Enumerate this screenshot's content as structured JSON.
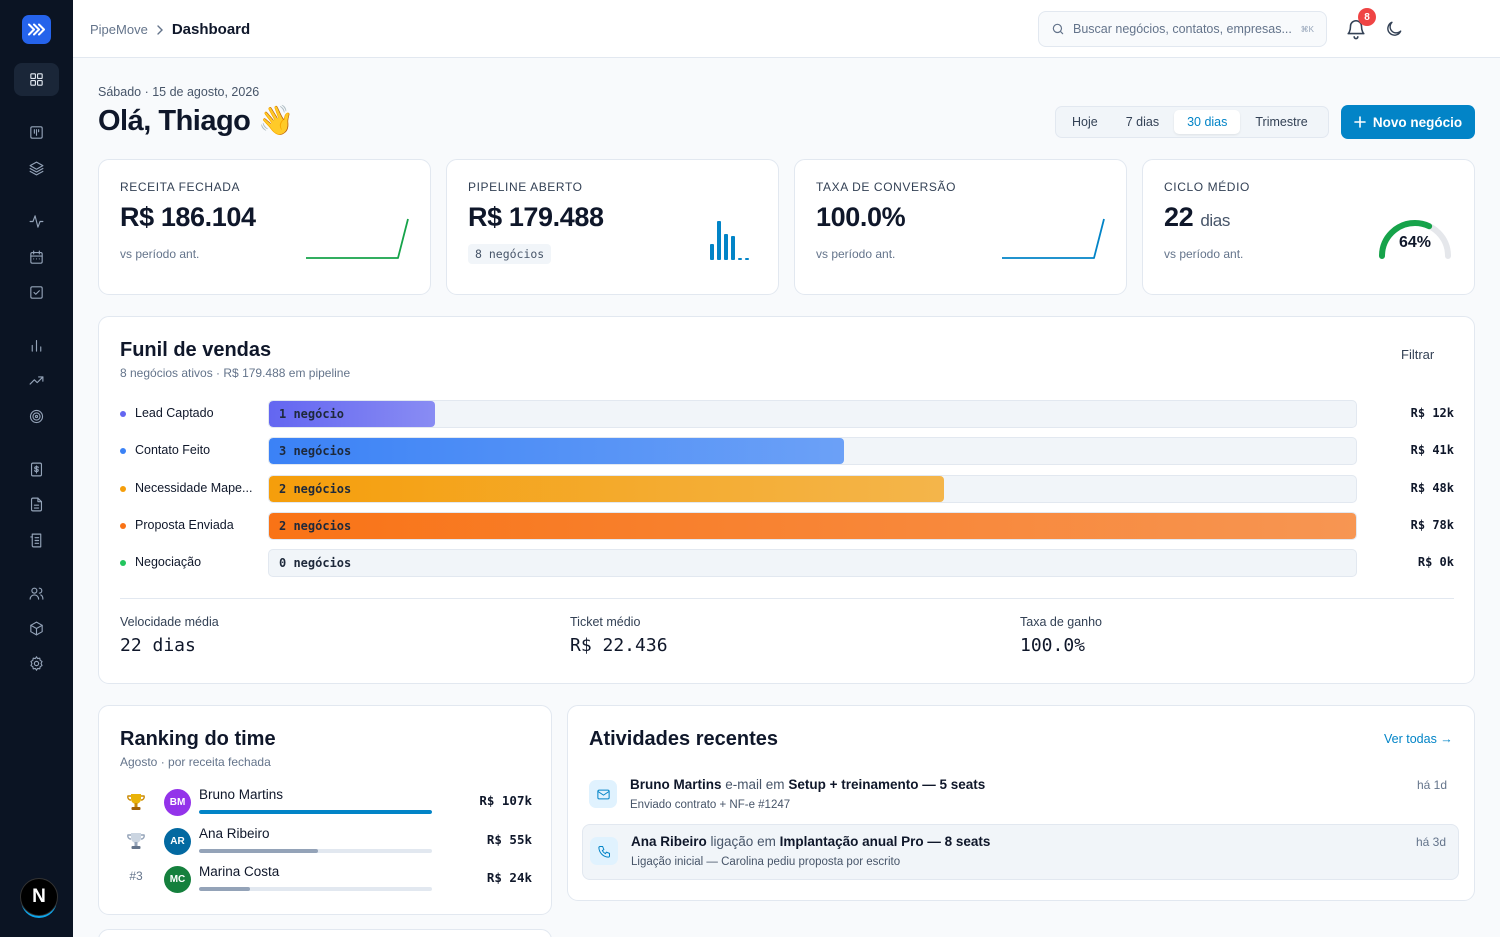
{
  "app": {
    "name": "PipeMove",
    "breadcrumb_current": "Dashboard",
    "accent": "#0284c7"
  },
  "search": {
    "placeholder": "Buscar negócios, contatos, empresas...",
    "shortcut": "⌘K"
  },
  "notifications": {
    "count": "8"
  },
  "sidebar": {
    "icons": [
      "dashboard-icon",
      "board-icon",
      "layers-icon",
      "activity-icon",
      "calendar-icon",
      "checkbox-icon",
      "bar-chart-icon",
      "trending-up-icon",
      "target-icon",
      "invoice-icon",
      "document-icon",
      "receipt-icon",
      "users-icon",
      "package-icon",
      "gear-icon"
    ],
    "user_initial": "N"
  },
  "header": {
    "date": "Sábado · 15 de agosto, 2026",
    "greeting": "Olá, Thiago 👋",
    "ranges": [
      "Hoje",
      "7 dias",
      "30 dias",
      "Trimestre"
    ],
    "selected_range": "30 dias",
    "new_button": "Novo negócio"
  },
  "kpis": [
    {
      "label": "RECEITA FECHADA",
      "value": "R$ 186.104",
      "sub": "vs período ant.",
      "spark_color": "#16a34a"
    },
    {
      "label": "PIPELINE ABERTO",
      "value": "R$ 179.488",
      "chip": "8 negócios",
      "bar_color": "#0284c7"
    },
    {
      "label": "TAXA DE CONVERSÃO",
      "value": "100.0%",
      "sub": "vs período ant.",
      "spark_color": "#0284c7"
    },
    {
      "label": "CICLO MÉDIO",
      "value": "22",
      "unit": "dias",
      "sub": "vs período ant.",
      "gauge_value": "64%",
      "gauge_fraction": 0.64,
      "gauge_color": "#16a34a"
    }
  ],
  "funnel": {
    "title": "Funil de vendas",
    "subtitle": "8 negócios ativos · R$ 179.488 em pipeline",
    "filter": "Filtrar",
    "stages": [
      {
        "name": "Lead Captado",
        "count": "1 negócio",
        "amount": "R$ 12k",
        "fraction": 0.153,
        "color": "#6366f1"
      },
      {
        "name": "Contato Feito",
        "count": "3 negócios",
        "amount": "R$ 41k",
        "fraction": 0.529,
        "color": "#3b82f6"
      },
      {
        "name": "Necessidade Mape...",
        "count": "2 negócios",
        "amount": "R$ 48k",
        "fraction": 0.621,
        "color": "#f59e0b"
      },
      {
        "name": "Proposta Enviada",
        "count": "2 negócios",
        "amount": "R$ 78k",
        "fraction": 1.0,
        "color": "#f97316"
      },
      {
        "name": "Negociação",
        "count": "0 negócios",
        "amount": "R$ 0k",
        "fraction": 0,
        "color": "#22c55e"
      }
    ],
    "stats": [
      {
        "label": "Velocidade média",
        "value": "22 dias"
      },
      {
        "label": "Ticket médio",
        "value": "R$ 22.436"
      },
      {
        "label": "Taxa de ganho",
        "value": "100.0%"
      }
    ]
  },
  "ranking": {
    "title": "Ranking do time",
    "subtitle": "Agosto · por receita fechada",
    "rows": [
      {
        "pos": "trophy-gold-icon",
        "initials": "BM",
        "name": "Bruno Martins",
        "amount": "R$ 107k",
        "fraction": 1.0,
        "avatar_color": "#9333ea",
        "bar_color": "#0284c7"
      },
      {
        "pos": "trophy-silver-icon",
        "initials": "AR",
        "name": "Ana Ribeiro",
        "amount": "R$ 55k",
        "fraction": 0.51,
        "avatar_color": "#0369a1",
        "bar_color": "#94a3b8"
      },
      {
        "pos": "#3",
        "initials": "MC",
        "name": "Marina Costa",
        "amount": "R$ 24k",
        "fraction": 0.22,
        "avatar_color": "#15803d",
        "bar_color": "#94a3b8"
      }
    ]
  },
  "activities": {
    "title": "Atividades recentes",
    "see_all": "Ver todas →",
    "items": [
      {
        "icon": "mail-icon",
        "who": "Bruno Martins",
        "verb": "e-mail em",
        "deal": "Setup + treinamento — 5 seats",
        "detail": "Enviado contrato + NF-e #1247",
        "when": "há 1d"
      },
      {
        "icon": "phone-icon",
        "who": "Ana Ribeiro",
        "verb": "ligação em",
        "deal": "Implantação anual Pro — 8 seats",
        "detail": "Ligação inicial — Carolina pediu proposta por escrito",
        "when": "há 3d"
      }
    ]
  }
}
